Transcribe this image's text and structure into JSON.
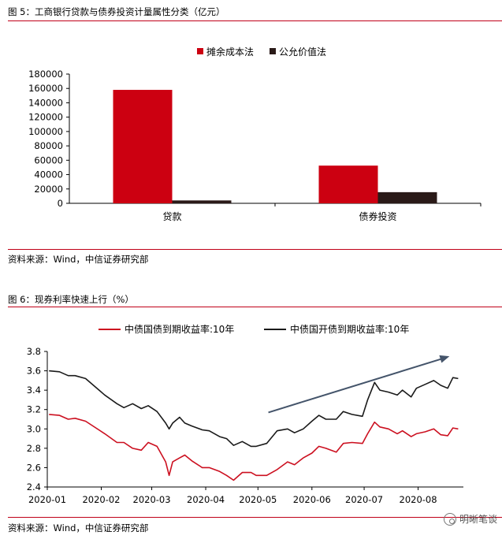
{
  "figure1": {
    "title": "图 5：工商银行贷款与债券投资计量属性分类（亿元）",
    "source": "资料来源：Wind，中信证券研究部"
  },
  "figure2": {
    "title": "图 6：现券利率快速上行（%）",
    "source": "资料来源：Wind，中信证券研究部"
  },
  "watermark": {
    "text": "明晰笔谈",
    "icon": "wechat-icon"
  },
  "chart_data": [
    {
      "type": "bar",
      "categories": [
        "贷款",
        "债券投资"
      ],
      "series": [
        {
          "name": "摊余成本法",
          "color": "#cc0011",
          "values": [
            158000,
            52500
          ]
        },
        {
          "name": "公允价值法",
          "color": "#2a1a18",
          "values": [
            4000,
            15500
          ]
        }
      ],
      "ylim": [
        0,
        180000
      ],
      "yticks": [
        "0",
        "20000",
        "40000",
        "60000",
        "80000",
        "100000",
        "120000",
        "140000",
        "160000",
        "180000"
      ],
      "legend": "top-center"
    },
    {
      "type": "line",
      "x": [
        "2020-01",
        "2020-02",
        "2020-03",
        "2020-04",
        "2020-05",
        "2020-06",
        "2020-07",
        "2020-08"
      ],
      "xticks": [
        "2020-01",
        "2020-02",
        "2020-03",
        "2020-04",
        "2020-05",
        "2020-06",
        "2020-07",
        "2020-08"
      ],
      "ylim": [
        2.4,
        3.8
      ],
      "yticks": [
        "2.4",
        "2.6",
        "2.8",
        "3.0",
        "3.2",
        "3.4",
        "3.6",
        "3.8"
      ],
      "legend": "top-center",
      "annotation": "upward-trend-arrow",
      "series": [
        {
          "name": "中债国债到期收益率:10年",
          "color": "#cc1020",
          "points": [
            [
              "2020-01-02",
              3.15
            ],
            [
              "2020-01-08",
              3.14
            ],
            [
              "2020-01-13",
              3.1
            ],
            [
              "2020-01-17",
              3.11
            ],
            [
              "2020-01-23",
              3.08
            ],
            [
              "2020-02-03",
              2.95
            ],
            [
              "2020-02-10",
              2.86
            ],
            [
              "2020-02-14",
              2.86
            ],
            [
              "2020-02-19",
              2.8
            ],
            [
              "2020-02-24",
              2.78
            ],
            [
              "2020-02-28",
              2.86
            ],
            [
              "2020-03-04",
              2.82
            ],
            [
              "2020-03-09",
              2.66
            ],
            [
              "2020-03-11",
              2.52
            ],
            [
              "2020-03-13",
              2.66
            ],
            [
              "2020-03-17",
              2.7
            ],
            [
              "2020-03-20",
              2.73
            ],
            [
              "2020-03-24",
              2.67
            ],
            [
              "2020-03-30",
              2.6
            ],
            [
              "2020-04-03",
              2.6
            ],
            [
              "2020-04-09",
              2.56
            ],
            [
              "2020-04-13",
              2.52
            ],
            [
              "2020-04-17",
              2.47
            ],
            [
              "2020-04-22",
              2.55
            ],
            [
              "2020-04-27",
              2.55
            ],
            [
              "2020-04-30",
              2.52
            ],
            [
              "2020-05-06",
              2.52
            ],
            [
              "2020-05-12",
              2.58
            ],
            [
              "2020-05-18",
              2.66
            ],
            [
              "2020-05-22",
              2.63
            ],
            [
              "2020-05-27",
              2.7
            ],
            [
              "2020-06-01",
              2.75
            ],
            [
              "2020-06-05",
              2.82
            ],
            [
              "2020-06-09",
              2.8
            ],
            [
              "2020-06-15",
              2.76
            ],
            [
              "2020-06-19",
              2.85
            ],
            [
              "2020-06-24",
              2.86
            ],
            [
              "2020-06-30",
              2.85
            ],
            [
              "2020-07-03",
              2.95
            ],
            [
              "2020-07-07",
              3.07
            ],
            [
              "2020-07-10",
              3.02
            ],
            [
              "2020-07-15",
              3.0
            ],
            [
              "2020-07-20",
              2.95
            ],
            [
              "2020-07-23",
              2.98
            ],
            [
              "2020-07-28",
              2.92
            ],
            [
              "2020-07-31",
              2.95
            ],
            [
              "2020-08-05",
              2.97
            ],
            [
              "2020-08-10",
              3.0
            ],
            [
              "2020-08-14",
              2.94
            ],
            [
              "2020-08-18",
              2.93
            ],
            [
              "2020-08-21",
              3.01
            ],
            [
              "2020-08-24",
              3.0
            ]
          ]
        },
        {
          "name": "中债国开债到期收益率:10年",
          "color": "#1a1a1a",
          "points": [
            [
              "2020-01-02",
              3.6
            ],
            [
              "2020-01-08",
              3.59
            ],
            [
              "2020-01-13",
              3.55
            ],
            [
              "2020-01-17",
              3.55
            ],
            [
              "2020-01-23",
              3.52
            ],
            [
              "2020-02-03",
              3.35
            ],
            [
              "2020-02-10",
              3.26
            ],
            [
              "2020-02-14",
              3.22
            ],
            [
              "2020-02-19",
              3.26
            ],
            [
              "2020-02-24",
              3.21
            ],
            [
              "2020-02-28",
              3.24
            ],
            [
              "2020-03-04",
              3.18
            ],
            [
              "2020-03-09",
              3.06
            ],
            [
              "2020-03-11",
              3.0
            ],
            [
              "2020-03-13",
              3.06
            ],
            [
              "2020-03-17",
              3.12
            ],
            [
              "2020-03-20",
              3.06
            ],
            [
              "2020-03-24",
              3.03
            ],
            [
              "2020-03-30",
              2.99
            ],
            [
              "2020-04-03",
              2.98
            ],
            [
              "2020-04-09",
              2.92
            ],
            [
              "2020-04-13",
              2.9
            ],
            [
              "2020-04-17",
              2.83
            ],
            [
              "2020-04-22",
              2.87
            ],
            [
              "2020-04-27",
              2.82
            ],
            [
              "2020-04-30",
              2.82
            ],
            [
              "2020-05-06",
              2.85
            ],
            [
              "2020-05-12",
              2.98
            ],
            [
              "2020-05-18",
              3.0
            ],
            [
              "2020-05-22",
              2.96
            ],
            [
              "2020-05-27",
              3.0
            ],
            [
              "2020-06-01",
              3.08
            ],
            [
              "2020-06-05",
              3.14
            ],
            [
              "2020-06-09",
              3.1
            ],
            [
              "2020-06-15",
              3.1
            ],
            [
              "2020-06-19",
              3.18
            ],
            [
              "2020-06-24",
              3.15
            ],
            [
              "2020-06-30",
              3.13
            ],
            [
              "2020-07-03",
              3.3
            ],
            [
              "2020-07-07",
              3.48
            ],
            [
              "2020-07-10",
              3.4
            ],
            [
              "2020-07-15",
              3.38
            ],
            [
              "2020-07-20",
              3.35
            ],
            [
              "2020-07-23",
              3.4
            ],
            [
              "2020-07-28",
              3.33
            ],
            [
              "2020-07-31",
              3.42
            ],
            [
              "2020-08-05",
              3.46
            ],
            [
              "2020-08-10",
              3.5
            ],
            [
              "2020-08-14",
              3.45
            ],
            [
              "2020-08-18",
              3.42
            ],
            [
              "2020-08-21",
              3.53
            ],
            [
              "2020-08-24",
              3.52
            ]
          ]
        }
      ]
    }
  ]
}
